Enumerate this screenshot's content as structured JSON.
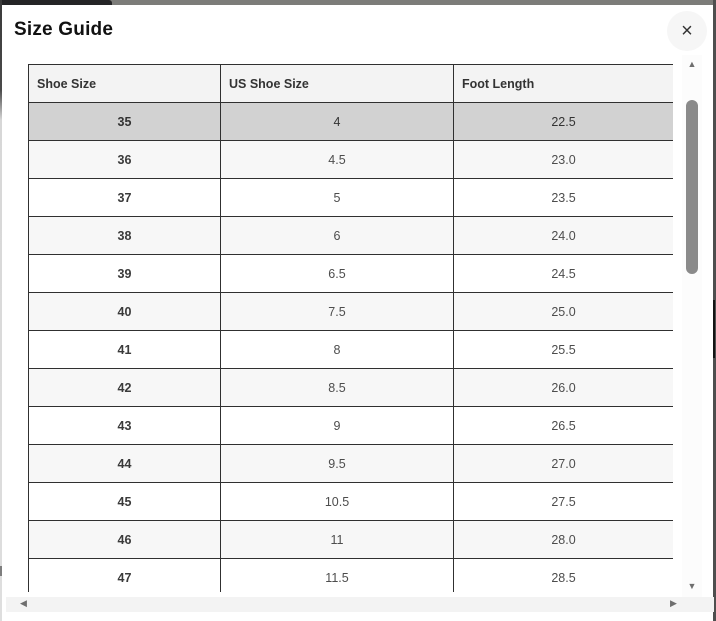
{
  "modal": {
    "title": "Size Guide",
    "close_icon": "×"
  },
  "table": {
    "columns": [
      "Shoe Size",
      "US Shoe Size",
      "Foot Length"
    ],
    "rows": [
      [
        "35",
        "4",
        "22.5"
      ],
      [
        "36",
        "4.5",
        "23.0"
      ],
      [
        "37",
        "5",
        "23.5"
      ],
      [
        "38",
        "6",
        "24.0"
      ],
      [
        "39",
        "6.5",
        "24.5"
      ],
      [
        "40",
        "7.5",
        "25.0"
      ],
      [
        "41",
        "8",
        "25.5"
      ],
      [
        "42",
        "8.5",
        "26.0"
      ],
      [
        "43",
        "9",
        "26.5"
      ],
      [
        "44",
        "9.5",
        "27.0"
      ],
      [
        "45",
        "10.5",
        "27.5"
      ],
      [
        "46",
        "11",
        "28.0"
      ],
      [
        "47",
        "11.5",
        "28.5"
      ]
    ],
    "selected_row": "35"
  },
  "scrollbar": {
    "up_icon": "▲",
    "down_icon": "▼",
    "left_icon": "◀",
    "right_icon": "▶"
  },
  "colors": {
    "selected_row_bg": "#d2d2d2",
    "zebra_row_bg": "#f7f7f7",
    "header_bg": "#f3f3f3",
    "table_border": "#303030",
    "scroll_thumb": "#8a8a8a"
  }
}
